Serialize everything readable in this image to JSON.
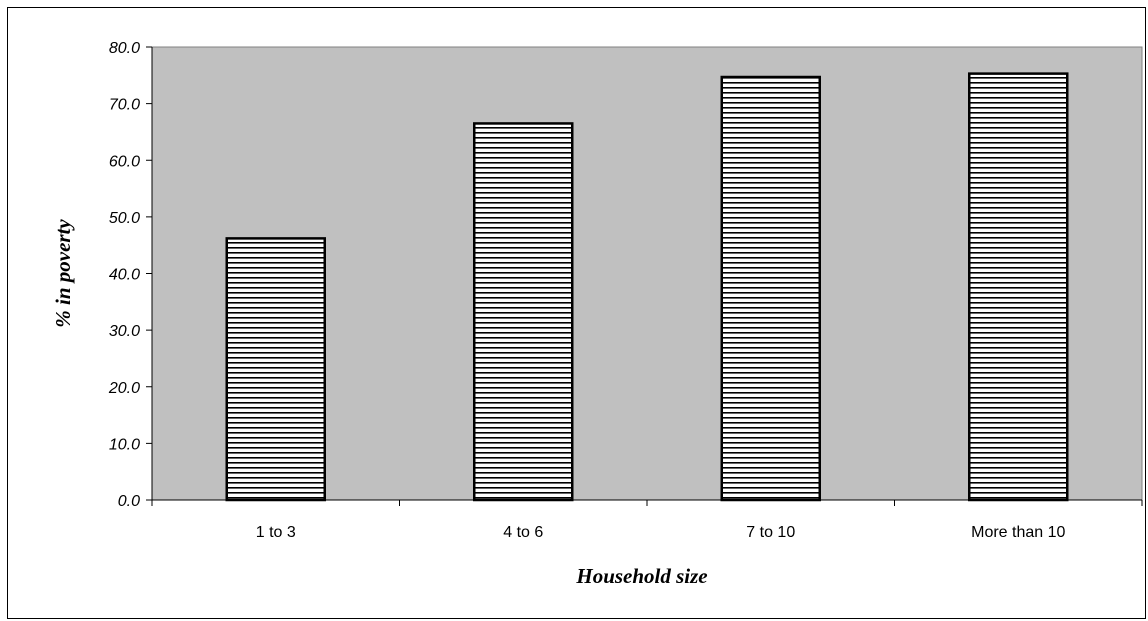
{
  "chart_data": {
    "type": "bar",
    "categories": [
      "1 to 3",
      "4 to 6",
      "7 to 10",
      "More than 10"
    ],
    "values": [
      46.2,
      66.5,
      74.7,
      75.3
    ],
    "xlabel": "Household size",
    "ylabel": "% in poverty",
    "ylim": [
      0,
      80
    ],
    "yticks": [
      "0.0",
      "10.0",
      "20.0",
      "30.0",
      "40.0",
      "50.0",
      "60.0",
      "70.0",
      "80.0"
    ],
    "grid": false,
    "legend": "none",
    "plot_background": "#c0c0c0",
    "bar_fill": "horizontal-stripes",
    "bar_stripe_color": "#000000",
    "bar_base_color": "#ffffff"
  }
}
